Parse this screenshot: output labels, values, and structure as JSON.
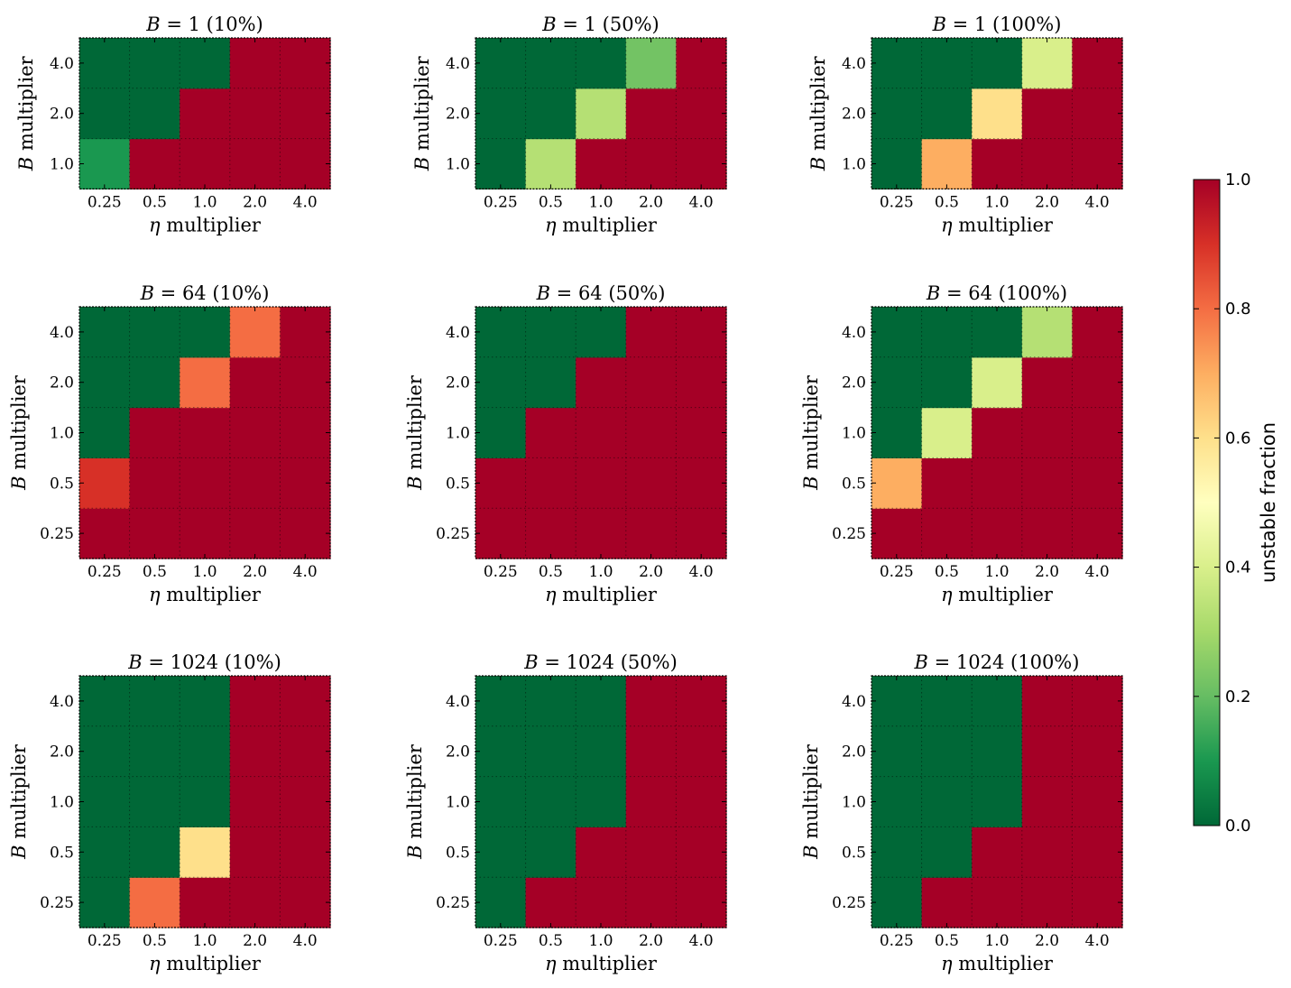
{
  "chart_data": [
    {
      "type": "heatmap",
      "title": "B = 1 (10%)",
      "title_parts": [
        "B",
        " = 1",
        " (10%)"
      ],
      "xlabel": "η multiplier",
      "ylabel": "B multiplier",
      "x_categories": [
        "0.25",
        "0.5",
        "1.0",
        "2.0",
        "4.0"
      ],
      "y_categories": [
        "1.0",
        "2.0",
        "4.0"
      ],
      "values": [
        [
          0.1,
          1,
          1,
          1,
          1
        ],
        [
          0,
          0,
          1,
          1,
          1
        ],
        [
          0,
          0,
          0,
          1,
          1
        ]
      ]
    },
    {
      "type": "heatmap",
      "title": "B = 1 (50%)",
      "title_parts": [
        "B",
        " = 1",
        " (50%)"
      ],
      "xlabel": "η multiplier",
      "ylabel": "B multiplier",
      "x_categories": [
        "0.25",
        "0.5",
        "1.0",
        "2.0",
        "4.0"
      ],
      "y_categories": [
        "1.0",
        "2.0",
        "4.0"
      ],
      "values": [
        [
          0,
          0.33,
          1,
          1,
          1
        ],
        [
          0,
          0,
          0.33,
          1,
          1
        ],
        [
          0,
          0,
          0,
          0.22,
          1
        ]
      ]
    },
    {
      "type": "heatmap",
      "title": "B = 1 (100%)",
      "title_parts": [
        "B",
        " = 1",
        " (100%)"
      ],
      "xlabel": "η multiplier",
      "ylabel": "B multiplier",
      "x_categories": [
        "0.25",
        "0.5",
        "1.0",
        "2.0",
        "4.0"
      ],
      "y_categories": [
        "1.0",
        "2.0",
        "4.0"
      ],
      "values": [
        [
          0,
          0.7,
          1,
          1,
          1
        ],
        [
          0,
          0,
          0.6,
          1,
          1
        ],
        [
          0,
          0,
          0,
          0.4,
          1
        ]
      ]
    },
    {
      "type": "heatmap",
      "title": "B = 64 (10%)",
      "title_parts": [
        "B",
        " = 64",
        " (10%)"
      ],
      "xlabel": "η multiplier",
      "ylabel": "B multiplier",
      "x_categories": [
        "0.25",
        "0.5",
        "1.0",
        "2.0",
        "4.0"
      ],
      "y_categories": [
        "0.25",
        "0.5",
        "1.0",
        "2.0",
        "4.0"
      ],
      "values": [
        [
          1,
          1,
          1,
          1,
          1
        ],
        [
          0.9,
          1,
          1,
          1,
          1
        ],
        [
          0,
          1,
          1,
          1,
          1
        ],
        [
          0,
          0,
          0.8,
          1,
          1
        ],
        [
          0,
          0,
          0,
          0.8,
          1
        ]
      ]
    },
    {
      "type": "heatmap",
      "title": "B = 64 (50%)",
      "title_parts": [
        "B",
        " = 64",
        " (50%)"
      ],
      "xlabel": "η multiplier",
      "ylabel": "B multiplier",
      "x_categories": [
        "0.25",
        "0.5",
        "1.0",
        "2.0",
        "4.0"
      ],
      "y_categories": [
        "0.25",
        "0.5",
        "1.0",
        "2.0",
        "4.0"
      ],
      "values": [
        [
          1,
          1,
          1,
          1,
          1
        ],
        [
          1,
          1,
          1,
          1,
          1
        ],
        [
          0,
          1,
          1,
          1,
          1
        ],
        [
          0,
          0,
          1,
          1,
          1
        ],
        [
          0,
          0,
          0,
          1,
          1
        ]
      ]
    },
    {
      "type": "heatmap",
      "title": "B = 64 (100%)",
      "title_parts": [
        "B",
        " = 64",
        " (100%)"
      ],
      "xlabel": "η multiplier",
      "ylabel": "B multiplier",
      "x_categories": [
        "0.25",
        "0.5",
        "1.0",
        "2.0",
        "4.0"
      ],
      "y_categories": [
        "0.25",
        "0.5",
        "1.0",
        "2.0",
        "4.0"
      ],
      "values": [
        [
          1,
          1,
          1,
          1,
          1
        ],
        [
          0.7,
          1,
          1,
          1,
          1
        ],
        [
          0,
          0.4,
          1,
          1,
          1
        ],
        [
          0,
          0,
          0.4,
          1,
          1
        ],
        [
          0,
          0,
          0,
          0.33,
          1
        ]
      ]
    },
    {
      "type": "heatmap",
      "title": "B = 1024 (10%)",
      "title_parts": [
        "B",
        " = 1024",
        " (10%)"
      ],
      "xlabel": "η multiplier",
      "ylabel": "B multiplier",
      "x_categories": [
        "0.25",
        "0.5",
        "1.0",
        "2.0",
        "4.0"
      ],
      "y_categories": [
        "0.25",
        "0.5",
        "1.0",
        "2.0",
        "4.0"
      ],
      "values": [
        [
          0,
          0.8,
          1,
          1,
          1
        ],
        [
          0,
          0,
          0.6,
          1,
          1
        ],
        [
          0,
          0,
          0,
          1,
          1
        ],
        [
          0,
          0,
          0,
          1,
          1
        ],
        [
          0,
          0,
          0,
          1,
          1
        ]
      ]
    },
    {
      "type": "heatmap",
      "title": "B = 1024 (50%)",
      "title_parts": [
        "B",
        " = 1024",
        " (50%)"
      ],
      "xlabel": "η multiplier",
      "ylabel": "B multiplier",
      "x_categories": [
        "0.25",
        "0.5",
        "1.0",
        "2.0",
        "4.0"
      ],
      "y_categories": [
        "0.25",
        "0.5",
        "1.0",
        "2.0",
        "4.0"
      ],
      "values": [
        [
          0,
          1,
          1,
          1,
          1
        ],
        [
          0,
          0,
          1,
          1,
          1
        ],
        [
          0,
          0,
          0,
          1,
          1
        ],
        [
          0,
          0,
          0,
          1,
          1
        ],
        [
          0,
          0,
          0,
          1,
          1
        ]
      ]
    },
    {
      "type": "heatmap",
      "title": "B = 1024 (100%)",
      "title_parts": [
        "B",
        " = 1024",
        " (100%)"
      ],
      "xlabel": "η multiplier",
      "ylabel": "B multiplier",
      "x_categories": [
        "0.25",
        "0.5",
        "1.0",
        "2.0",
        "4.0"
      ],
      "y_categories": [
        "0.25",
        "0.5",
        "1.0",
        "2.0",
        "4.0"
      ],
      "values": [
        [
          0,
          1,
          1,
          1,
          1
        ],
        [
          0,
          0,
          1,
          1,
          1
        ],
        [
          0,
          0,
          0,
          1,
          1
        ],
        [
          0,
          0,
          0,
          1,
          1
        ],
        [
          0,
          0,
          0,
          1,
          1
        ]
      ]
    }
  ],
  "colorbar": {
    "label": "unstable fraction",
    "range": [
      0.0,
      1.0
    ],
    "ticks": [
      "0.0",
      "0.2",
      "0.4",
      "0.6",
      "0.8",
      "1.0"
    ],
    "colormap": "RdYlGn_r",
    "color_stops": [
      "#006837",
      "#1a9850",
      "#66bd63",
      "#a6d96a",
      "#d9ef8b",
      "#ffffbf",
      "#fee08b",
      "#fdae61",
      "#f46d43",
      "#d73027",
      "#a50026"
    ]
  },
  "grid": "dotted",
  "x_axis_label_prefix": "η",
  "y_axis_label_prefix": "B",
  "axis_label_suffix": " multiplier"
}
